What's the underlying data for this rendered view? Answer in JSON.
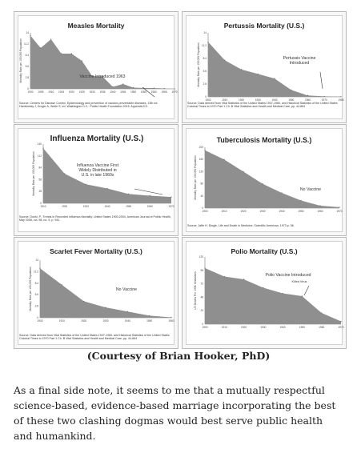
{
  "caption": "(Courtesy of Brian Hooker, PhD)",
  "paragraph": [
    "As a final side note, it seems to me that a mutually respectful",
    "science-based, evidence-based marriage incorporating the best",
    "of these two clashing dogmas would best serve public health",
    "and humankind."
  ],
  "colors": {
    "area": "#8f8f8f",
    "line": "#555555",
    "bg": "#ffffff"
  },
  "chart_data": [
    {
      "type": "area",
      "title": "Measles Mortality",
      "xlabel": "",
      "ylabel": "Mortality Rate per 100,000 Population",
      "x": [
        1900,
        1905,
        1910,
        1915,
        1920,
        1925,
        1930,
        1935,
        1940,
        1945,
        1950,
        1955,
        1960,
        1965,
        1970
      ],
      "values": [
        13.3,
        10.2,
        12.4,
        8.8,
        8.8,
        7.0,
        3.2,
        3.1,
        0.5,
        1.2,
        0.3,
        0.2,
        0.2,
        0.1,
        0.0
      ],
      "ylim": [
        0,
        14
      ],
      "xlim": [
        1900,
        1970
      ],
      "annotation": "Vaccine Introduced 1963",
      "source": "Source: Centers for Disease Control, Epidemiology and prevention of vaccine-preventable diseases, 13th ed. Hamborsky J, Kroger A, Wolfe S, ed. Washington D.C.: Public Health Foundation 2015. Appendix E3."
    },
    {
      "type": "area",
      "title": "Pertussis Mortality (U.S.)",
      "xlabel": "",
      "ylabel": "Mortality Rate per 100,000 Population",
      "x": [
        1900,
        1910,
        1920,
        1930,
        1940,
        1950,
        1960,
        1970,
        1980
      ],
      "values": [
        12,
        8,
        6,
        5,
        4,
        1.5,
        0.3,
        0.1,
        0.05
      ],
      "ylim": [
        0,
        14
      ],
      "xlim": [
        1900,
        1980
      ],
      "annotation": "Pertussis Vaccine Introduced",
      "source": "Source: Data derived from Vital Statistics of the United States 1937-1960, and Historical Statistics of the United States Colonial Times to 1970 Part 1 Ch. B Vital Statistics and Health and Medical Care, pp. 44-864"
    },
    {
      "type": "area",
      "title": "Influenza Mortality (U.S.)",
      "xlabel": "",
      "ylabel": "Mortality Rate per 100,000 Population",
      "x": [
        1910,
        1920,
        1930,
        1940,
        1950,
        1960,
        1970
      ],
      "values": [
        130,
        70,
        45,
        35,
        22,
        18,
        15
      ],
      "ylim": [
        0,
        140
      ],
      "xlim": [
        1910,
        1970
      ],
      "annotation": "Influenza Vaccine First Widely Distributed in U.S. in late 1960s",
      "source": "Source: Doshi, P., Trends in Recorded Influenza Mortality: United States 1900-2004, American Journal of Public Health, May 2008, vol. 98, no. 5, p. 941."
    },
    {
      "type": "area",
      "title": "Tuberculosis Mortality (U.S.)",
      "xlabel": "",
      "ylabel": "Mortality Rate per 100,000 Population",
      "x": [
        1900,
        1910,
        1920,
        1930,
        1940,
        1950,
        1960,
        1970
      ],
      "values": [
        190,
        160,
        120,
        80,
        50,
        25,
        8,
        3
      ],
      "ylim": [
        0,
        200
      ],
      "xlim": [
        1900,
        1970
      ],
      "annotation": "No Vaccine",
      "source": "Source: Jaffe H. Dingle, Life and Death in Medicine, Scientific American, 1973 p. 56."
    },
    {
      "type": "area",
      "title": "Scarlet Fever Mortality (U.S.)",
      "xlabel": "",
      "ylabel": "Mortality Rate per 100,000 Population",
      "x": [
        1900,
        1910,
        1920,
        1930,
        1940,
        1950,
        1960
      ],
      "values": [
        12,
        8,
        4,
        2.5,
        1.5,
        0.5,
        0.1
      ],
      "ylim": [
        0,
        14
      ],
      "xlim": [
        1900,
        1960
      ],
      "annotation": "No Vaccine",
      "source": "Source: Data derived from Vital Statistics of the United States 1937-1960, and Historical Statistics of the United States Colonial Times to 1970 Part 1 Ch. B Vital Statistics and Health and Medical Care, pp. 44-864"
    },
    {
      "type": "area",
      "title": "Polio Mortality (U.S.)",
      "xlabel": "",
      "ylabel": "US Deaths Per 100K Inhabitants",
      "x": [
        1900,
        1910,
        1920,
        1930,
        1940,
        1950,
        1960,
        1970
      ],
      "values": [
        100,
        85,
        80,
        65,
        55,
        50,
        20,
        5
      ],
      "ylim": [
        0,
        120
      ],
      "xlim": [
        1900,
        1970
      ],
      "annotation": "Polio Vaccine Introduced",
      "annotation2": "Killed Virus",
      "source": ""
    }
  ]
}
